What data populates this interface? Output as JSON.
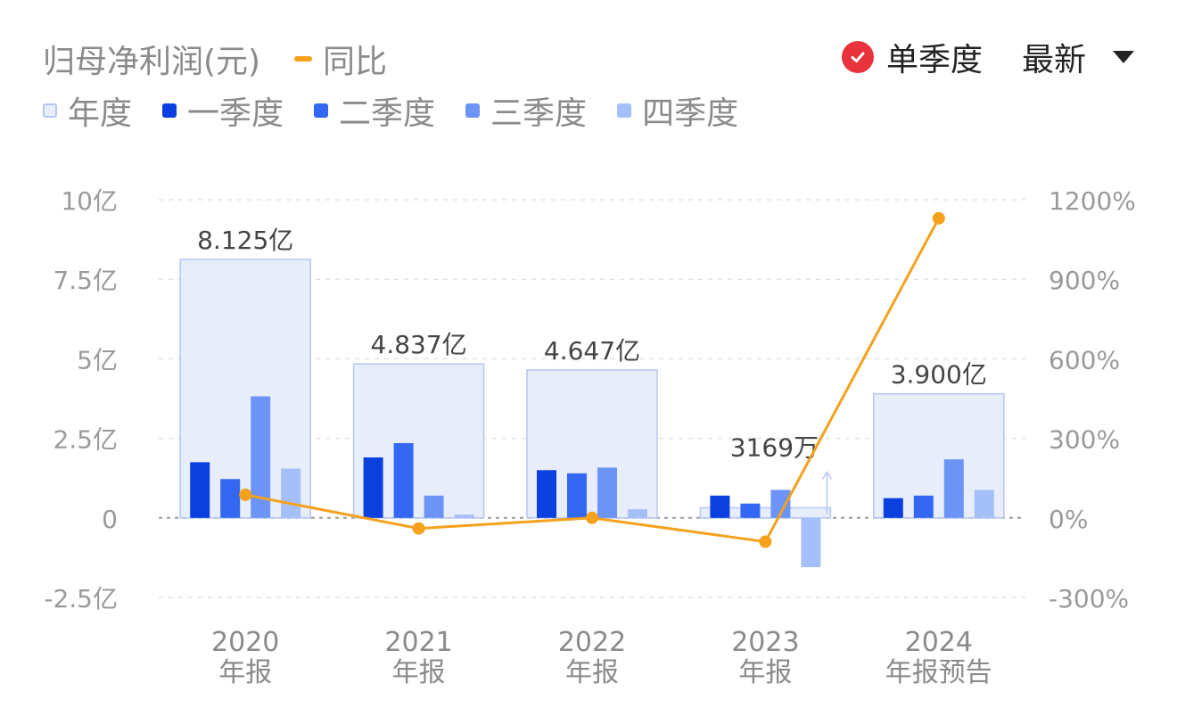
{
  "header": {
    "title": "归母净利润(元)",
    "yoy_label": "同比",
    "single_quarter_label": "单季度",
    "latest_label": "最新"
  },
  "colors": {
    "annual_fill": "#e8edfc",
    "annual_stroke": "#b6c6f4",
    "q1": "#0a3fe0",
    "q2": "#3369f2",
    "q3": "#6b94f6",
    "q4": "#a5bffa",
    "yoy": "#f5a11c",
    "badge": "#e8323c"
  },
  "legend": [
    {
      "label": "年度",
      "key": "annual"
    },
    {
      "label": "一季度",
      "key": "q1"
    },
    {
      "label": "二季度",
      "key": "q2"
    },
    {
      "label": "三季度",
      "key": "q3"
    },
    {
      "label": "四季度",
      "key": "q4"
    }
  ],
  "chart_data": {
    "type": "bar",
    "categories": [
      {
        "year": "2020",
        "period": "年报"
      },
      {
        "year": "2021",
        "period": "年报"
      },
      {
        "year": "2022",
        "period": "年报"
      },
      {
        "year": "2023",
        "period": "年报"
      },
      {
        "year": "2024",
        "period": "年报预告"
      }
    ],
    "annual": [
      8.125,
      4.837,
      4.647,
      0.3169,
      3.9
    ],
    "annual_labels": [
      "8.125亿",
      "4.837亿",
      "4.647亿",
      "3169万",
      "3.900亿"
    ],
    "quarters": {
      "q1": [
        1.75,
        1.9,
        1.5,
        0.7,
        0.62
      ],
      "q2": [
        1.22,
        2.35,
        1.4,
        0.45,
        0.7
      ],
      "q3": [
        3.82,
        0.7,
        1.58,
        0.88,
        1.84
      ],
      "q4": [
        1.55,
        0.1,
        0.27,
        -1.55,
        0.88
      ]
    },
    "yoy": [
      87,
      -40,
      0,
      -90,
      1130
    ],
    "left_axis": {
      "ticks": [
        10,
        7.5,
        5,
        2.5,
        0,
        -2.5
      ],
      "labels": [
        "10亿",
        "7.5亿",
        "5亿",
        "2.5亿",
        "0",
        "-2.5亿"
      ],
      "ylim": [
        -2.5,
        10
      ]
    },
    "right_axis": {
      "ticks": [
        1200,
        900,
        600,
        300,
        0,
        -300
      ],
      "labels": [
        "1200%",
        "900%",
        "600%",
        "300%",
        "0%",
        "-300%"
      ],
      "ylim": [
        -300,
        1200
      ]
    },
    "grid": true
  }
}
